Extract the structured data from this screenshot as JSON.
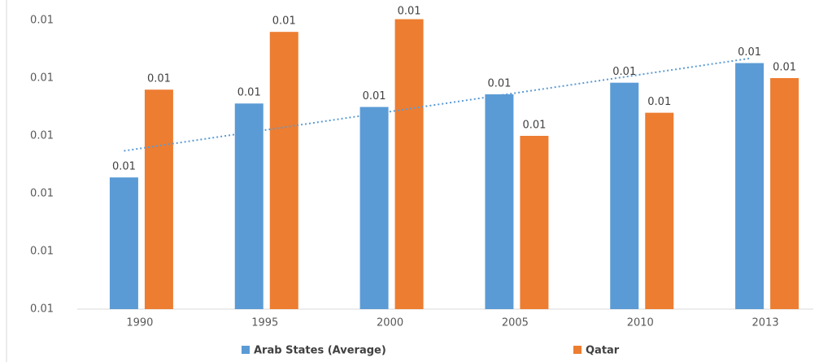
{
  "chart_data": {
    "type": "bar",
    "categories": [
      "1990",
      "1995",
      "2000",
      "2005",
      "2010",
      "2013"
    ],
    "series": [
      {
        "name": "Arab States (Average)",
        "color": "#5b9bd5",
        "values": [
          0.01114,
          0.01178,
          0.01175,
          0.01186,
          0.01196,
          0.01213
        ],
        "value_labels": [
          "0.01",
          "0.01",
          "0.01",
          "0.01",
          "0.01",
          "0.01"
        ]
      },
      {
        "name": "Qatar",
        "color": "#ed7d31",
        "values": [
          0.0119,
          0.0124,
          0.01251,
          0.0115,
          0.0117,
          0.012
        ],
        "value_labels": [
          "0.01",
          "0.01",
          "0.01",
          "0.01",
          "0.01",
          "0.01"
        ]
      }
    ],
    "ylim": [
      0.01,
      0.0125
    ],
    "yticks": [
      {
        "value": 0.01,
        "label": "0.01"
      },
      {
        "value": 0.0105,
        "label": "0.01"
      },
      {
        "value": 0.011,
        "label": "0.01"
      },
      {
        "value": 0.0115,
        "label": "0.01"
      },
      {
        "value": 0.012,
        "label": "0.01"
      },
      {
        "value": 0.0125,
        "label": "0.01"
      }
    ],
    "grid": false,
    "trendline": true
  }
}
